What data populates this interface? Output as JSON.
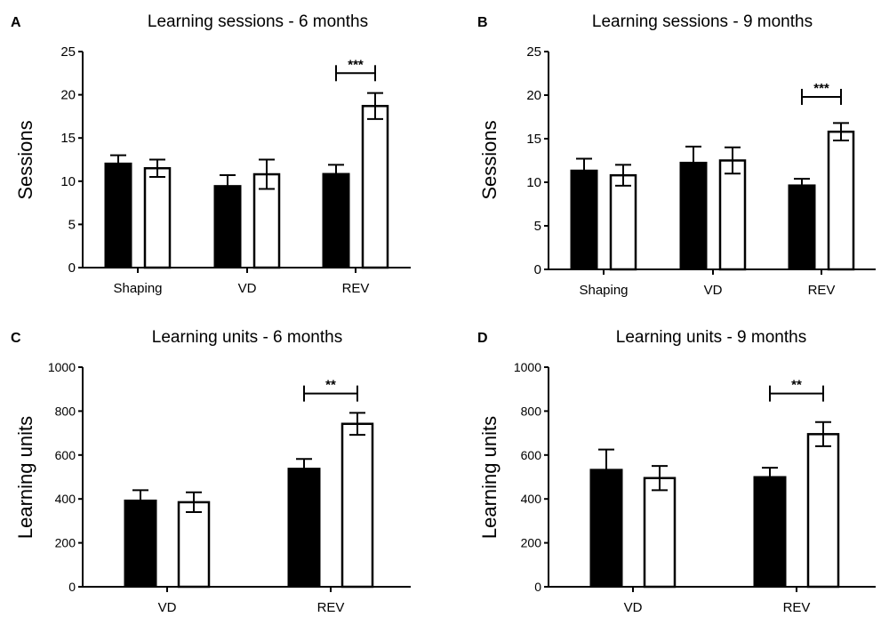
{
  "chart_data": [
    {
      "panel_label": "A",
      "type": "bar",
      "title": "Learning sessions - 6 months",
      "ylabel": "Sessions",
      "xlabel": "",
      "ylim": [
        0,
        25
      ],
      "yticks": [
        0,
        5,
        10,
        15,
        20,
        25
      ],
      "categories": [
        "Shaping",
        "VD",
        "REV"
      ],
      "series": [
        {
          "fill": "#000000",
          "values": [
            12.1,
            9.5,
            10.9
          ],
          "errors": [
            0.9,
            1.2,
            1.0
          ]
        },
        {
          "fill": "#ffffff",
          "values": [
            11.5,
            10.8,
            18.7
          ],
          "errors": [
            1.0,
            1.7,
            1.5
          ]
        }
      ],
      "significance": [
        {
          "category": "REV",
          "label": "***",
          "y": 22.5
        }
      ]
    },
    {
      "panel_label": "B",
      "type": "bar",
      "title": "Learning sessions - 9 months",
      "ylabel": "Sessions",
      "xlabel": "",
      "ylim": [
        0,
        25
      ],
      "yticks": [
        0,
        5,
        10,
        15,
        20,
        25
      ],
      "categories": [
        "Shaping",
        "VD",
        "REV"
      ],
      "series": [
        {
          "fill": "#000000",
          "values": [
            11.4,
            12.3,
            9.7
          ],
          "errors": [
            1.3,
            1.8,
            0.7
          ]
        },
        {
          "fill": "#ffffff",
          "values": [
            10.8,
            12.5,
            15.8
          ],
          "errors": [
            1.2,
            1.5,
            1.0
          ]
        }
      ],
      "significance": [
        {
          "category": "REV",
          "label": "***",
          "y": 19.8
        }
      ]
    },
    {
      "panel_label": "C",
      "type": "bar",
      "title": "Learning units - 6 months",
      "ylabel": "Learning units",
      "xlabel": "",
      "ylim": [
        0,
        1000
      ],
      "yticks": [
        0,
        200,
        400,
        600,
        800,
        1000
      ],
      "categories": [
        "VD",
        "REV"
      ],
      "series": [
        {
          "fill": "#000000",
          "values": [
            395,
            540
          ],
          "errors": [
            45,
            42
          ]
        },
        {
          "fill": "#ffffff",
          "values": [
            385,
            742
          ],
          "errors": [
            45,
            50
          ]
        }
      ],
      "significance": [
        {
          "category": "REV",
          "label": "**",
          "y": 880
        }
      ]
    },
    {
      "panel_label": "D",
      "type": "bar",
      "title": "Learning units - 9 months",
      "ylabel": "Learning units",
      "xlabel": "",
      "ylim": [
        0,
        1000
      ],
      "yticks": [
        0,
        200,
        400,
        600,
        800,
        1000
      ],
      "categories": [
        "VD",
        "REV"
      ],
      "series": [
        {
          "fill": "#000000",
          "values": [
            535,
            502
          ],
          "errors": [
            90,
            40
          ]
        },
        {
          "fill": "#ffffff",
          "values": [
            495,
            695
          ],
          "errors": [
            55,
            55
          ]
        }
      ],
      "significance": [
        {
          "category": "REV",
          "label": "**",
          "y": 880
        }
      ]
    }
  ]
}
